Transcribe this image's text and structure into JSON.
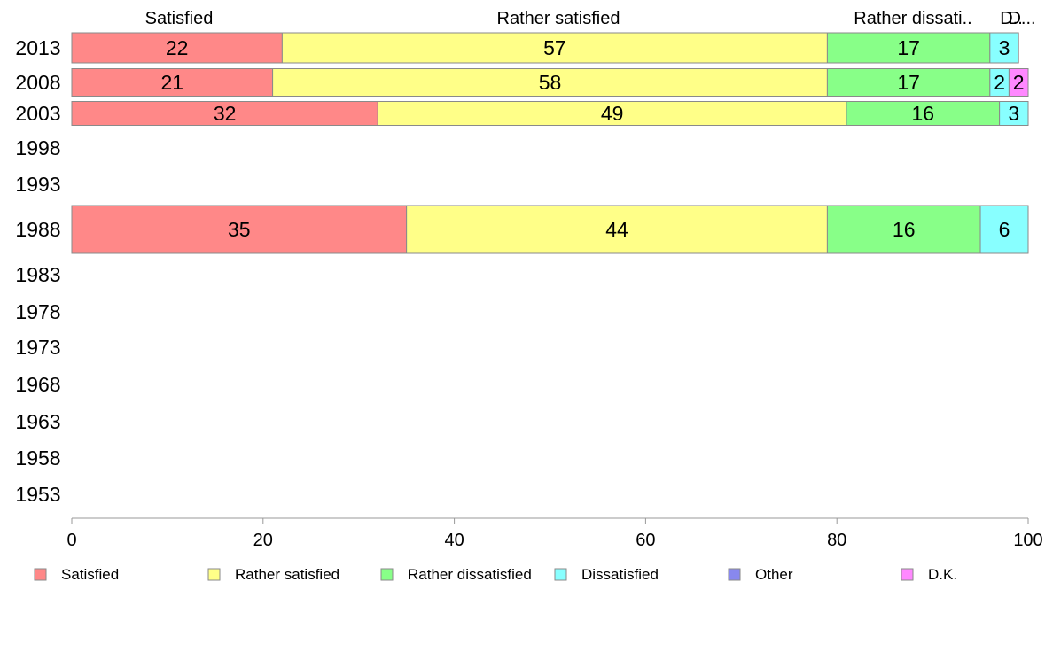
{
  "chart_data": {
    "type": "bar",
    "orientation": "horizontal",
    "stacked": true,
    "categories": [
      "2013",
      "2008",
      "2003",
      "1998",
      "1993",
      "1988",
      "1983",
      "1978",
      "1973",
      "1968",
      "1963",
      "1958",
      "1953"
    ],
    "series": [
      {
        "name": "Satisfied",
        "color": "#ff8888",
        "values": [
          22,
          21,
          32,
          null,
          null,
          35,
          null,
          null,
          null,
          null,
          null,
          null,
          null
        ]
      },
      {
        "name": "Rather satisfied",
        "color": "#ffff88",
        "values": [
          57,
          58,
          49,
          null,
          null,
          44,
          null,
          null,
          null,
          null,
          null,
          null,
          null
        ]
      },
      {
        "name": "Rather dissatisfied",
        "color": "#88ff88",
        "values": [
          17,
          17,
          16,
          null,
          null,
          16,
          null,
          null,
          null,
          null,
          null,
          null,
          null
        ]
      },
      {
        "name": "Dissatisfied",
        "color": "#88ffff",
        "values": [
          3,
          2,
          3,
          null,
          null,
          6,
          null,
          null,
          null,
          null,
          null,
          null,
          null
        ]
      },
      {
        "name": "Other",
        "color": "#8888ee",
        "values": [
          null,
          null,
          null,
          null,
          null,
          null,
          null,
          null,
          null,
          null,
          null,
          null,
          null
        ]
      },
      {
        "name": "D.K.",
        "color": "#ff88ff",
        "values": [
          null,
          2,
          null,
          null,
          null,
          null,
          null,
          null,
          null,
          null,
          null,
          null,
          null
        ]
      }
    ],
    "top_labels": [
      "Satisfied",
      "Rather satisfied",
      "Rather dissati..",
      "D..",
      "D..."
    ],
    "xlim": [
      0,
      100
    ],
    "xticks": [
      0,
      20,
      40,
      60,
      80,
      100
    ],
    "xlabel": "",
    "ylabel": "",
    "legend_position": "bottom",
    "grid": false
  }
}
